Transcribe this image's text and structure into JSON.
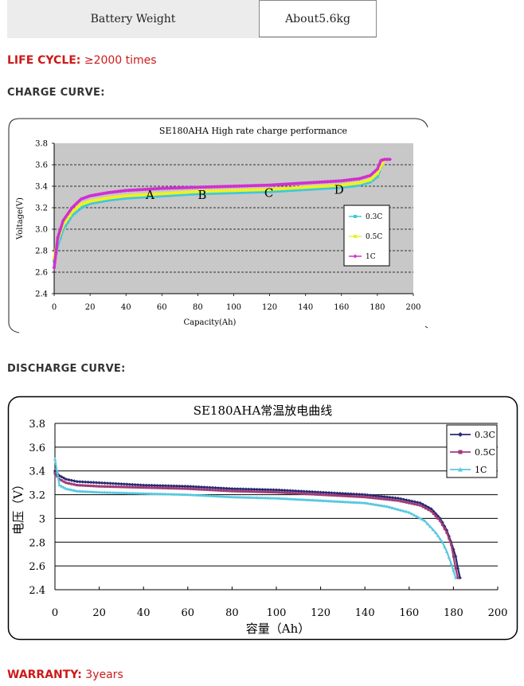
{
  "spec": {
    "label": "Battery Weight",
    "value": "About5.6kg"
  },
  "life_cycle": {
    "label": "LIFE CYCLE:",
    "value": "≥2000 times"
  },
  "charge_section": {
    "title": "CHARGE CURVE:"
  },
  "discharge_section": {
    "title": "DISCHARGE CURVE:"
  },
  "warranty": {
    "label": "WARRANTY:",
    "value": "3years"
  },
  "chart_data": [
    {
      "type": "line",
      "title": "SE180AHA High rate charge performance",
      "xlabel": "Capacity(Ah)",
      "ylabel": "Voltage(V)",
      "xlim": [
        0,
        200
      ],
      "ylim": [
        2.4,
        3.8
      ],
      "x_ticks": [
        "0",
        "20",
        "40",
        "60",
        "80",
        "100",
        "120",
        "140",
        "160",
        "180",
        "200"
      ],
      "y_ticks": [
        "2.4",
        "2.6",
        "2.8",
        "3.0",
        "3.2",
        "3.4",
        "3.6",
        "3.8"
      ],
      "colors": {
        "plot_bg": "#c8c8c8",
        "legend_border": "#000000"
      },
      "annotations": [
        {
          "text": "A",
          "x": 51,
          "y": 3.28
        },
        {
          "text": "B",
          "x": 80,
          "y": 3.28
        },
        {
          "text": "C",
          "x": 117,
          "y": 3.3
        },
        {
          "text": "D",
          "x": 156,
          "y": 3.33
        }
      ],
      "series": [
        {
          "name": "0.3C",
          "color": "#3ec8dc",
          "marker": "square",
          "x": [
            0,
            2,
            5,
            10,
            15,
            20,
            30,
            40,
            60,
            80,
            100,
            120,
            140,
            160,
            170,
            176,
            180,
            182,
            183
          ],
          "y": [
            2.7,
            2.85,
            3.0,
            3.13,
            3.2,
            3.24,
            3.27,
            3.29,
            3.31,
            3.33,
            3.34,
            3.35,
            3.37,
            3.39,
            3.41,
            3.44,
            3.49,
            3.58,
            3.62
          ]
        },
        {
          "name": "0.5C",
          "color": "#f0f020",
          "marker": "square",
          "x": [
            0,
            2,
            5,
            10,
            15,
            20,
            30,
            40,
            60,
            80,
            100,
            120,
            140,
            160,
            170,
            176,
            180,
            183,
            184
          ],
          "y": [
            2.73,
            2.9,
            3.04,
            3.16,
            3.23,
            3.26,
            3.29,
            3.31,
            3.33,
            3.35,
            3.36,
            3.37,
            3.39,
            3.41,
            3.43,
            3.46,
            3.52,
            3.62,
            3.65
          ]
        },
        {
          "name": "1C",
          "color": "#d030d0",
          "marker": "diamond",
          "x": [
            0,
            2,
            5,
            10,
            15,
            20,
            30,
            40,
            60,
            80,
            100,
            120,
            140,
            160,
            170,
            176,
            180,
            182,
            184,
            187
          ],
          "y": [
            2.64,
            2.92,
            3.08,
            3.2,
            3.28,
            3.31,
            3.34,
            3.36,
            3.38,
            3.39,
            3.4,
            3.41,
            3.43,
            3.45,
            3.47,
            3.5,
            3.56,
            3.64,
            3.65,
            3.65
          ]
        }
      ]
    },
    {
      "type": "line",
      "title": "SE180AHA常温放电曲线",
      "xlabel": "容量（Ah）",
      "ylabel": "电压（V）",
      "xlim": [
        0,
        200
      ],
      "ylim": [
        2.4,
        3.8
      ],
      "x_ticks": [
        "0",
        "20",
        "40",
        "60",
        "80",
        "100",
        "120",
        "140",
        "160",
        "180",
        "200"
      ],
      "y_ticks": [
        "2.4",
        "2.6",
        "2.8",
        "3",
        "3.2",
        "3.4",
        "3.6",
        "3.8"
      ],
      "series": [
        {
          "name": "0.3C",
          "color": "#2a2a72",
          "marker": "diamond",
          "x": [
            0,
            2,
            5,
            10,
            20,
            40,
            60,
            80,
            100,
            120,
            140,
            155,
            165,
            170,
            174,
            177,
            179,
            181,
            182,
            183
          ],
          "y": [
            3.4,
            3.36,
            3.33,
            3.31,
            3.3,
            3.28,
            3.27,
            3.25,
            3.24,
            3.22,
            3.2,
            3.17,
            3.13,
            3.08,
            3.0,
            2.9,
            2.8,
            2.68,
            2.58,
            2.5
          ]
        },
        {
          "name": "0.5C",
          "color": "#a03c78",
          "marker": "square",
          "x": [
            0,
            2,
            5,
            10,
            20,
            40,
            60,
            80,
            100,
            120,
            140,
            155,
            165,
            170,
            174,
            177,
            179,
            180,
            181,
            182
          ],
          "y": [
            3.38,
            3.33,
            3.3,
            3.28,
            3.27,
            3.26,
            3.25,
            3.23,
            3.22,
            3.2,
            3.18,
            3.15,
            3.11,
            3.06,
            2.98,
            2.88,
            2.78,
            2.68,
            2.58,
            2.5
          ]
        },
        {
          "name": "1C",
          "color": "#58c8e0",
          "marker": "triangle",
          "x": [
            0,
            2,
            5,
            10,
            20,
            40,
            60,
            80,
            100,
            120,
            140,
            150,
            160,
            167,
            172,
            175,
            177,
            179,
            180,
            181
          ],
          "y": [
            3.5,
            3.28,
            3.25,
            3.23,
            3.22,
            3.21,
            3.2,
            3.18,
            3.17,
            3.15,
            3.13,
            3.1,
            3.05,
            2.98,
            2.88,
            2.8,
            2.72,
            2.62,
            2.56,
            2.5
          ]
        }
      ]
    }
  ]
}
